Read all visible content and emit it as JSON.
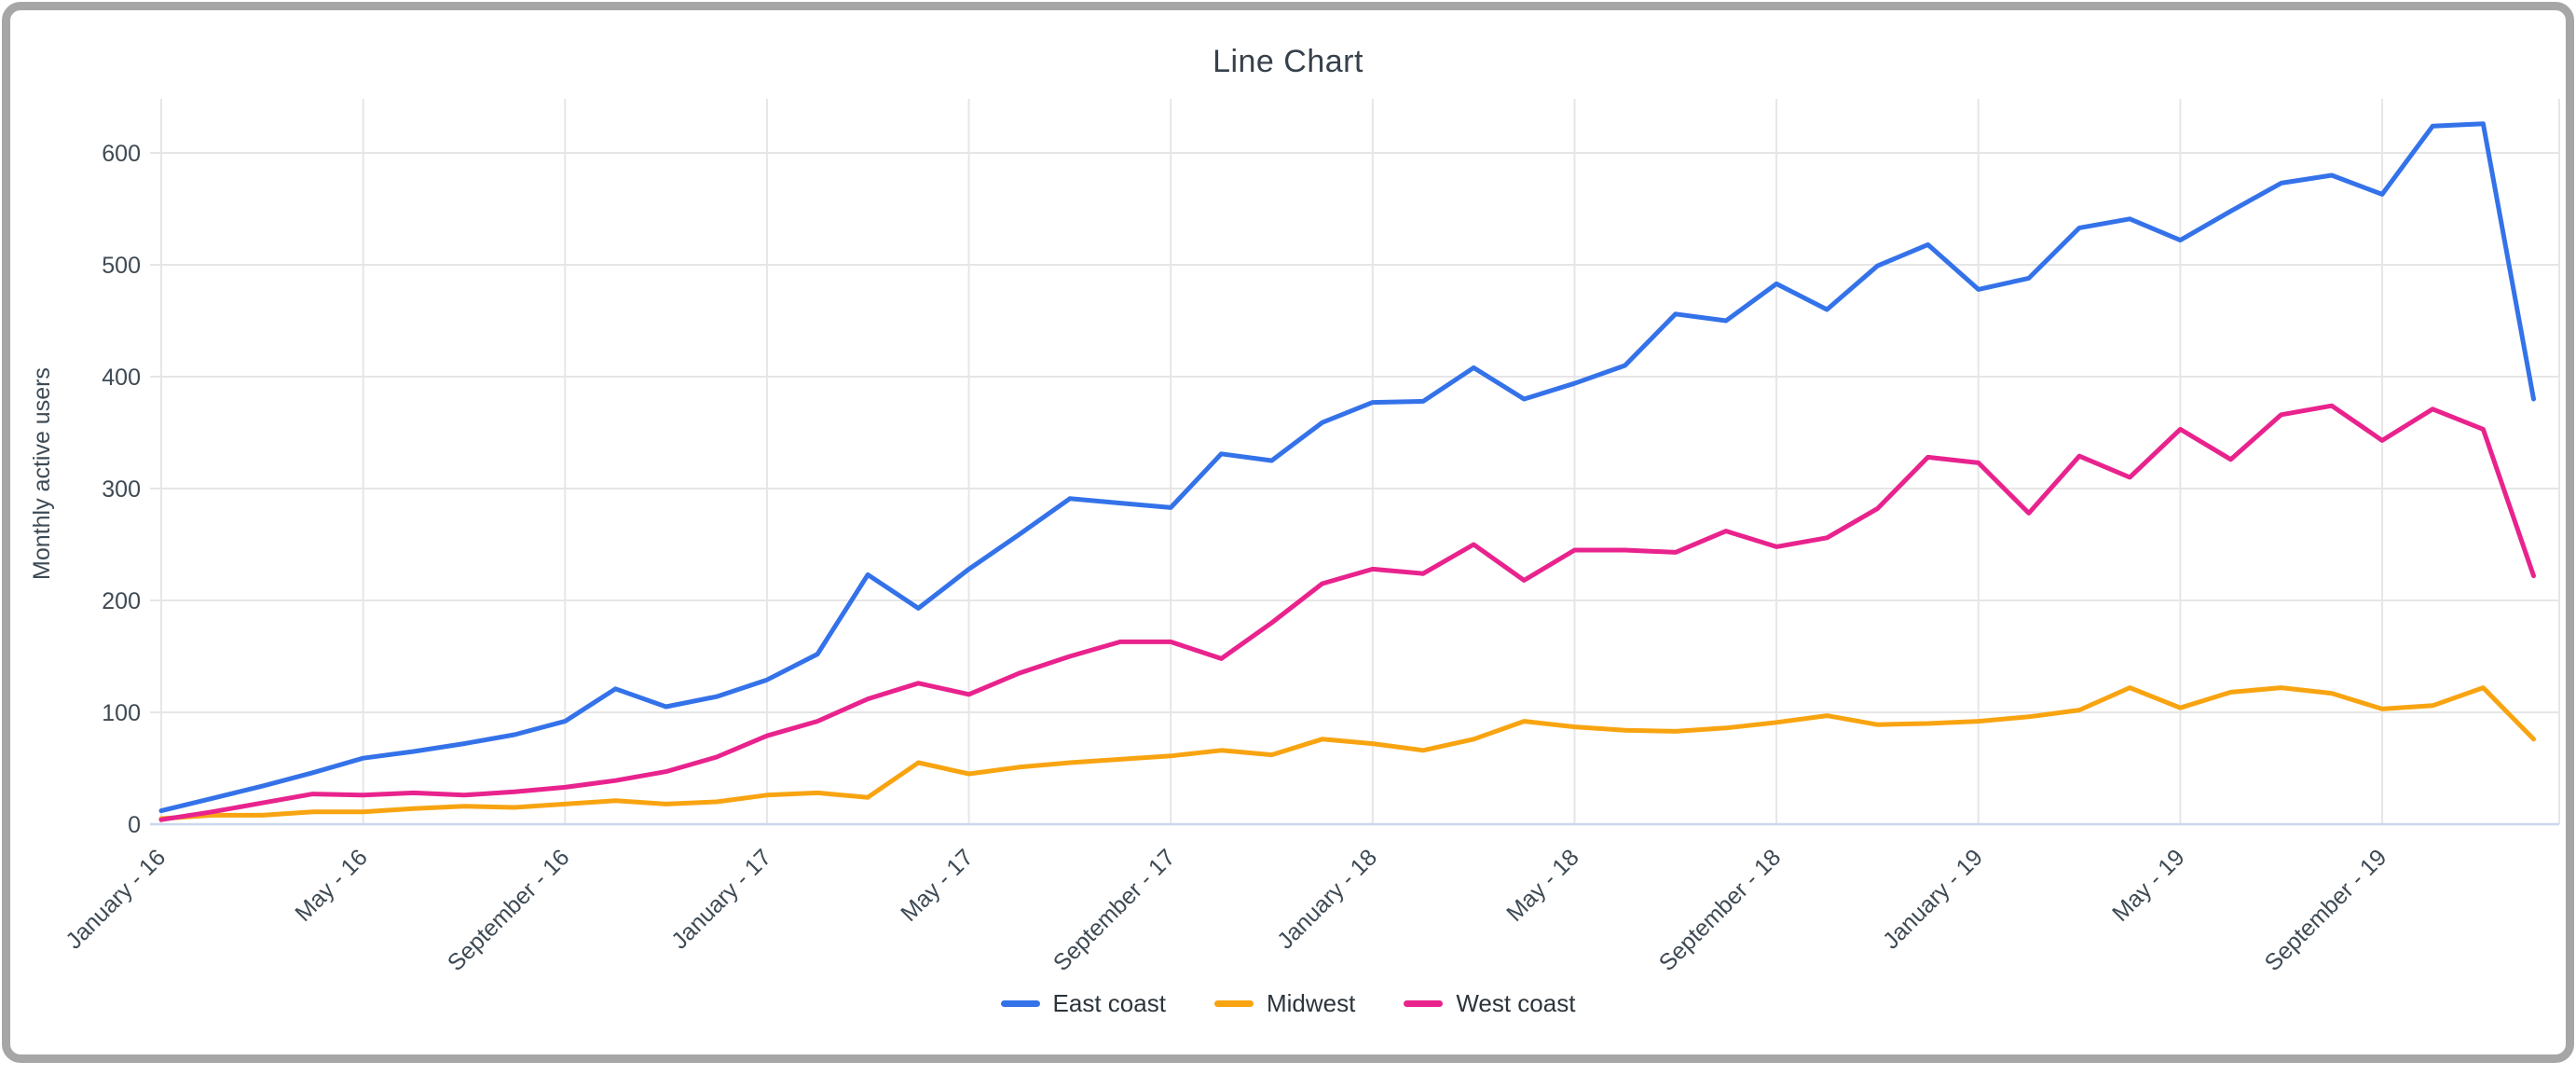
{
  "window": {
    "background": "#ffffff",
    "frame_color": "#a6a6a6"
  },
  "title": "Line Chart",
  "y_axis": {
    "title": "Monthly active users"
  },
  "legend": {
    "items": [
      {
        "label": "East coast",
        "color": "#3472E9"
      },
      {
        "label": "Midwest",
        "color": "#F8A411"
      },
      {
        "label": "West coast",
        "color": "#E9238D"
      }
    ]
  },
  "chart_data": {
    "type": "line",
    "title": "Line Chart",
    "xlabel": "",
    "ylabel": "Monthly active users",
    "ylim": [
      0,
      650
    ],
    "y_ticks": [
      0,
      100,
      200,
      300,
      400,
      500,
      600
    ],
    "grid": true,
    "legend_position": "bottom",
    "n_points": 48,
    "x_range_note": "monthly points, January 2016 through December 2019",
    "x_tick_labels": [
      "January - 16",
      "May - 16",
      "September - 16",
      "January - 17",
      "May - 17",
      "September - 17",
      "January - 18",
      "May - 18",
      "September - 18",
      "January - 19",
      "May - 19",
      "September - 19"
    ],
    "x_tick_month_index": [
      0,
      4,
      8,
      12,
      16,
      20,
      24,
      28,
      32,
      36,
      40,
      44
    ],
    "colors": {
      "gridline": "#e6e6e6",
      "baseline": "#ccd7ee",
      "tick_text": "#3e4a54"
    },
    "series": [
      {
        "name": "East coast",
        "color": "#3472E9",
        "values": [
          12,
          23,
          34,
          46,
          59,
          65,
          72,
          80,
          92,
          121,
          105,
          114,
          129,
          152,
          223,
          193,
          228,
          259,
          291,
          287,
          283,
          331,
          325,
          359,
          377,
          378,
          408,
          380,
          394,
          410,
          456,
          450,
          483,
          460,
          499,
          518,
          478,
          488,
          533,
          541,
          522,
          548,
          573,
          580,
          563,
          624,
          626,
          380
        ]
      },
      {
        "name": "Midwest",
        "color": "#F8A411",
        "values": [
          5,
          8,
          8,
          11,
          11,
          14,
          16,
          15,
          18,
          21,
          18,
          20,
          26,
          28,
          24,
          55,
          45,
          51,
          55,
          58,
          61,
          66,
          62,
          76,
          72,
          66,
          76,
          92,
          87,
          84,
          83,
          86,
          91,
          97,
          89,
          90,
          92,
          96,
          102,
          122,
          104,
          118,
          122,
          117,
          103,
          106,
          122,
          76
        ]
      },
      {
        "name": "West coast",
        "color": "#E9238D",
        "values": [
          4,
          11,
          19,
          27,
          26,
          28,
          26,
          29,
          33,
          39,
          47,
          60,
          79,
          92,
          112,
          126,
          116,
          135,
          150,
          163,
          163,
          148,
          180,
          215,
          228,
          224,
          250,
          218,
          245,
          245,
          243,
          262,
          248,
          256,
          282,
          328,
          323,
          278,
          329,
          310,
          353,
          326,
          366,
          374,
          343,
          371,
          353,
          222
        ]
      }
    ]
  }
}
